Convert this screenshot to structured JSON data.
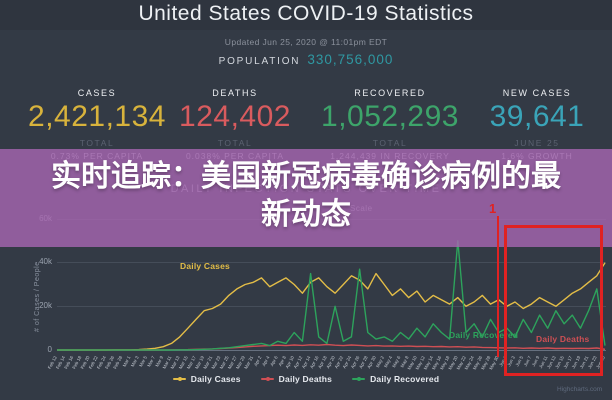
{
  "header": {
    "title": "United States COVID-19 Statistics",
    "updated": "Updated Jun 25, 2020 @ 11:01pm EDT",
    "population_label": "POPULATION",
    "population_value": "330,756,000",
    "population_color": "#2f98a2"
  },
  "stats": [
    {
      "label": "CASES",
      "value": "2,421,134",
      "sub1": "TOTAL",
      "sub2": "0.73% PER CAPITA",
      "color": "#d8b33c"
    },
    {
      "label": "DEATHS",
      "value": "124,402",
      "sub1": "TOTAL",
      "sub2": "0.038% PER CAPITA",
      "color": "#d95b5e"
    },
    {
      "label": "RECOVERED",
      "value": "1,052,293",
      "sub1": "TOTAL",
      "sub2": "1,244,439 IN RECOVERY",
      "color": "#3da46a"
    },
    {
      "label": "NEW CASES",
      "value": "39,641",
      "sub1": "JUNE 25",
      "sub2": "1.6% GROWTH",
      "color": "#3aa4b8"
    }
  ],
  "overlay": {
    "line1": "实时追踪：美国新冠病毒确诊病例的最",
    "line2": "新动态",
    "color": "rgba(167,102,177,0.8)"
  },
  "annotation": {
    "marker": "1",
    "color": "#e02222"
  },
  "watermark": "Highcharts.com",
  "chart_data": {
    "type": "line",
    "title": "DAILY INFECTION STATS OVER TIME",
    "scale_label": "Scale",
    "ylabel": "# of Cases / People",
    "ylim": [
      0,
      60000
    ],
    "yticks": [
      "0",
      "20k",
      "40k",
      "60k"
    ],
    "grid": true,
    "legend_position": "bottom",
    "x": [
      "Feb 12",
      "Feb 14",
      "Feb 16",
      "Feb 18",
      "Feb 20",
      "Feb 22",
      "Feb 24",
      "Feb 26",
      "Feb 28",
      "Mar 1",
      "Mar 3",
      "Mar 5",
      "Mar 7",
      "Mar 9",
      "Mar 11",
      "Mar 13",
      "Mar 15",
      "Mar 17",
      "Mar 19",
      "Mar 21",
      "Mar 23",
      "Mar 25",
      "Mar 27",
      "Mar 29",
      "Mar 31",
      "Apr 2",
      "Apr 4",
      "Apr 6",
      "Apr 8",
      "Apr 10",
      "Apr 12",
      "Apr 14",
      "Apr 16",
      "Apr 18",
      "Apr 20",
      "Apr 22",
      "Apr 24",
      "Apr 26",
      "Apr 28",
      "Apr 30",
      "May 2",
      "May 4",
      "May 6",
      "May 8",
      "May 10",
      "May 12",
      "May 14",
      "May 16",
      "May 18",
      "May 20",
      "May 22",
      "May 24",
      "May 26",
      "May 28",
      "May 30",
      "Jun 1",
      "Jun 3",
      "Jun 5",
      "Jun 7",
      "Jun 9",
      "Jun 11",
      "Jun 13",
      "Jun 15",
      "Jun 17",
      "Jun 19",
      "Jun 21",
      "Jun 23",
      "Jun 25"
    ],
    "series": [
      {
        "name": "Daily Cases",
        "color": "#e3bd47",
        "values": [
          0,
          0,
          0,
          0,
          0,
          0,
          0,
          100,
          100,
          100,
          200,
          400,
          800,
          1500,
          3000,
          6000,
          10000,
          14000,
          18000,
          19000,
          21000,
          25000,
          28000,
          30000,
          31000,
          33000,
          29000,
          31000,
          33000,
          30000,
          26000,
          31000,
          33000,
          29000,
          26000,
          30000,
          34000,
          32000,
          28000,
          35000,
          30000,
          25000,
          28000,
          24000,
          27000,
          22000,
          25000,
          23000,
          21000,
          24000,
          20000,
          22000,
          25000,
          21000,
          23000,
          20000,
          22000,
          19000,
          21000,
          24000,
          22000,
          20000,
          23000,
          26000,
          28000,
          31000,
          34000,
          40000
        ]
      },
      {
        "name": "Daily Deaths",
        "color": "#cf4f54",
        "values": [
          0,
          0,
          0,
          0,
          0,
          0,
          0,
          0,
          0,
          0,
          0,
          0,
          0,
          50,
          100,
          150,
          200,
          300,
          400,
          500,
          700,
          900,
          1100,
          1400,
          1700,
          1900,
          2000,
          2200,
          2000,
          2300,
          2100,
          2400,
          2200,
          2500,
          2200,
          2000,
          2300,
          2100,
          1900,
          2000,
          1800,
          1900,
          1700,
          1800,
          1600,
          1700,
          1500,
          1600,
          1400,
          1500,
          1300,
          1400,
          1200,
          1100,
          1000,
          900,
          1000,
          800,
          900,
          800,
          900,
          700,
          800,
          700,
          800,
          700,
          900,
          300
        ]
      },
      {
        "name": "Daily Recovered",
        "color": "#2da35c",
        "values": [
          0,
          0,
          0,
          0,
          0,
          0,
          0,
          0,
          0,
          0,
          0,
          0,
          0,
          0,
          0,
          100,
          100,
          200,
          300,
          500,
          800,
          1000,
          1500,
          2000,
          2500,
          3000,
          2000,
          4000,
          3000,
          8000,
          4000,
          35000,
          6000,
          3000,
          20000,
          4000,
          6000,
          37000,
          8000,
          5000,
          6000,
          4000,
          8000,
          5000,
          10000,
          6000,
          12000,
          8000,
          5000,
          50000,
          8000,
          12000,
          6000,
          14000,
          8000,
          10000,
          6000,
          14000,
          8000,
          16000,
          10000,
          18000,
          12000,
          16000,
          10000,
          18000,
          28000,
          2000
        ]
      }
    ]
  }
}
